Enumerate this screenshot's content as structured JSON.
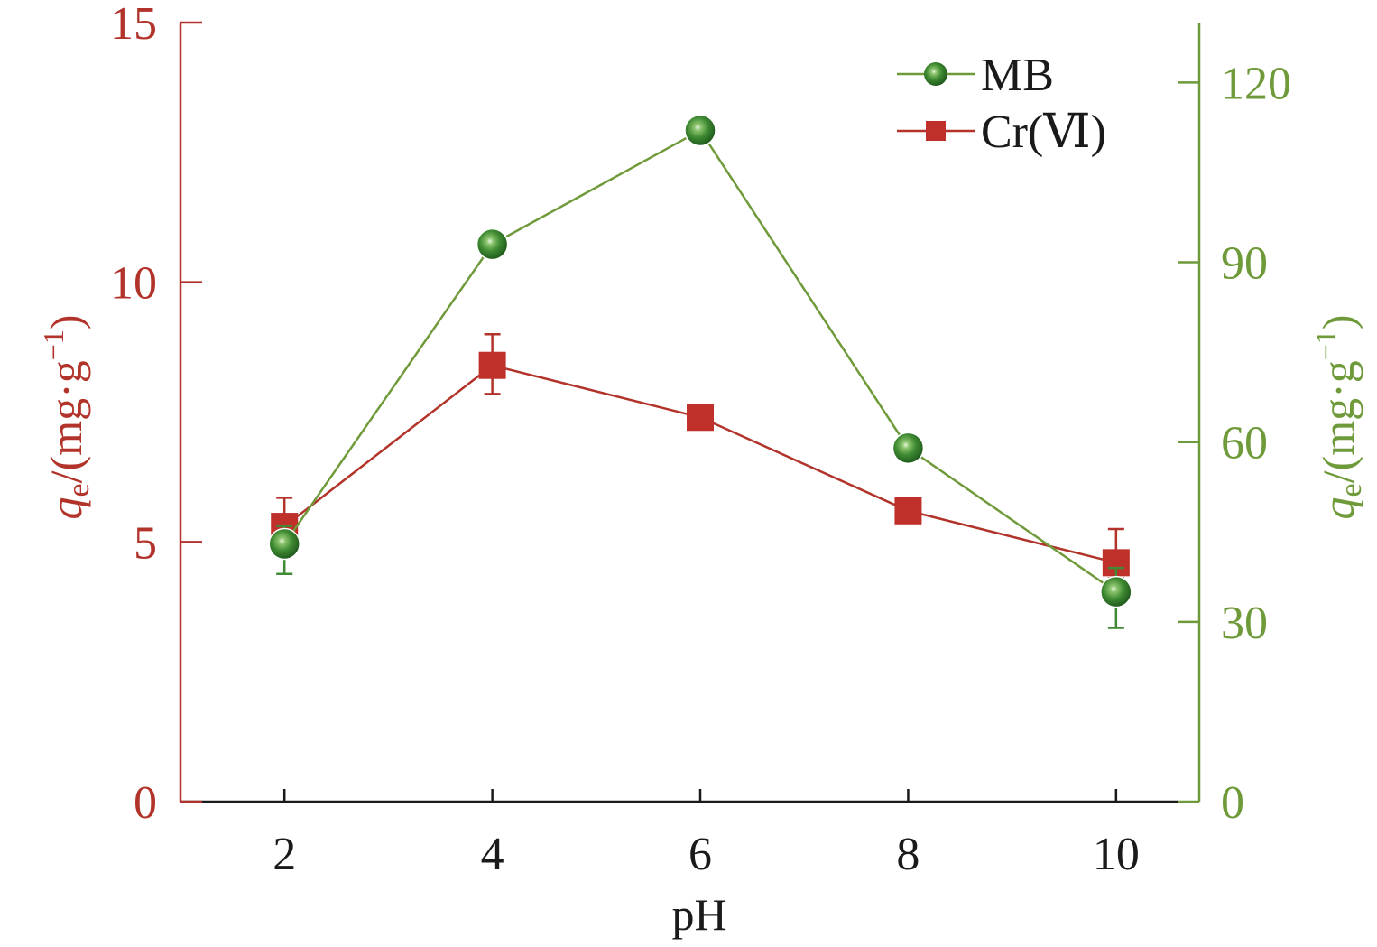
{
  "colors": {
    "left_axis": "#b2332a",
    "right_axis": "#6f9a3a",
    "mb_line": "#6f9a3a",
    "mb_marker": "#3f8a32",
    "cr_line": "#b2332a",
    "cr_marker": "#c0302a",
    "x_axis": "#1a1a1a",
    "text_dark": "#1a1a1a"
  },
  "chart_data": {
    "type": "line",
    "xlabel": "pH",
    "x_ticks": [
      "2",
      "4",
      "6",
      "8",
      "10"
    ],
    "x": [
      2,
      4,
      6,
      8,
      10
    ],
    "xlim": [
      1,
      10.8
    ],
    "left_axis": {
      "label_q": "q",
      "label_sub": "e",
      "label_rest": "/(mg·g",
      "label_sup": "−1",
      "label_close": ")",
      "ylim": [
        0,
        15
      ],
      "ticks": [
        "0",
        "5",
        "10",
        "15"
      ]
    },
    "right_axis": {
      "label_q": "q",
      "label_sub": "e",
      "label_rest": "/(mg·g",
      "label_sup": "−1",
      "label_close": ")",
      "ylim": [
        0,
        130
      ],
      "ticks": [
        "0",
        "30",
        "60",
        "90",
        "120"
      ]
    },
    "legend_position": "top-right",
    "series": [
      {
        "name": "MB",
        "axis": "right",
        "marker": "circle",
        "values": [
          43,
          93,
          112,
          59,
          35
        ],
        "error_up": [
          3,
          0,
          0,
          0,
          4
        ],
        "error_down": [
          5,
          0,
          0,
          0,
          6
        ]
      },
      {
        "name": "Cr(Ⅵ)",
        "axis": "left",
        "marker": "square",
        "values": [
          5.3,
          8.4,
          7.4,
          5.6,
          4.6
        ],
        "error_up": [
          0.55,
          0.6,
          0,
          0,
          0.65
        ],
        "error_down": [
          0.5,
          0.55,
          0,
          0,
          0.3
        ]
      }
    ]
  }
}
